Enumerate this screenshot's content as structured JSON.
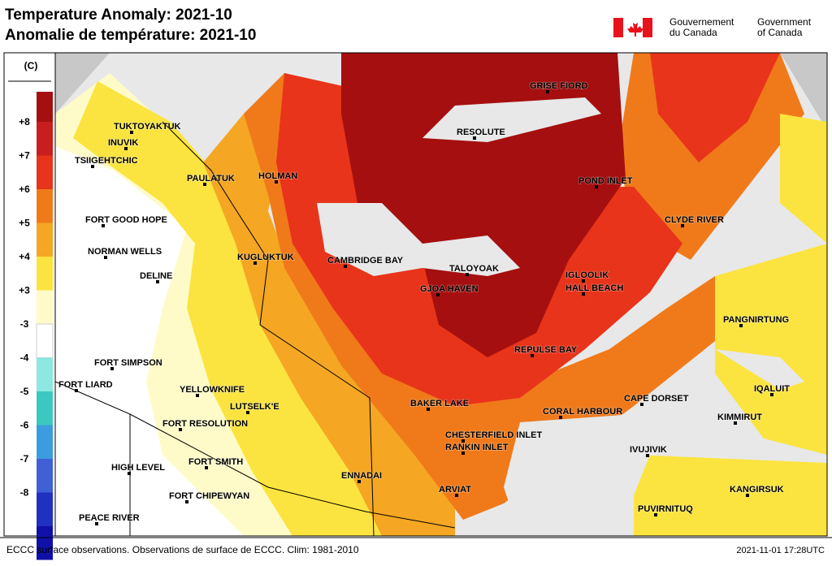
{
  "header": {
    "title": "Temperature Anomaly: 2021-10",
    "subtitle": "Anomalie de température: 2021-10",
    "gov_fr": [
      "Gouvernement",
      "du Canada"
    ],
    "gov_en": [
      "Government",
      "of Canada"
    ]
  },
  "legend": {
    "unit": "(C)",
    "labels": [
      "+8",
      "+7",
      "+6",
      "+5",
      "+4",
      "+3",
      "-3",
      "-4",
      "-5",
      "-6",
      "-7",
      "-8"
    ]
  },
  "cities": [
    "TUKTOYAKTUK",
    "INUVIK",
    "TSIIGEHTCHIC",
    "PAULATUK",
    "HOLMAN",
    "FORT GOOD HOPE",
    "NORMAN WELLS",
    "DELINE",
    "KUGLUKTUK",
    "CAMBRIDGE BAY",
    "TALOYOAK",
    "GJOA HAVEN",
    "IGLOOLIK",
    "HALL BEACH",
    "RESOLUTE",
    "GRISE FIORD",
    "POND INLET",
    "CLYDE RIVER",
    "PANGNIRTUNG",
    "REPULSE BAY",
    "FORT SIMPSON",
    "FORT LIARD",
    "YELLOWKNIFE",
    "LUTSELK'E",
    "FORT RESOLUTION",
    "BAKER LAKE",
    "CHESTERFIELD INLET",
    "RANKIN INLET",
    "CORAL HARBOUR",
    "CAPE DORSET",
    "IQALUIT",
    "KIMMIRUT",
    "IVUJIVIK",
    "FORT SMITH",
    "HIGH LEVEL",
    "ENNADAI",
    "ARVIAT",
    "KANGIRSUK",
    "FORT CHIPEWYAN",
    "PUVIRNITUQ",
    "PEACE RIVER"
  ],
  "footer": {
    "source": "ECCC surface observations. Observations de surface de ECCC. Clim: 1981-2010",
    "timestamp": "2021-11-01 17:28UTC"
  }
}
